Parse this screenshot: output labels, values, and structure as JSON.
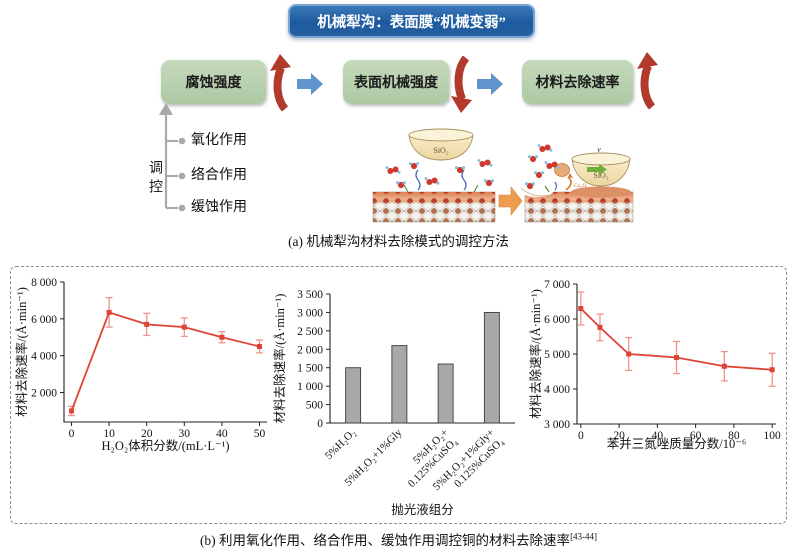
{
  "figure": {
    "panel_a": {
      "title_box": "机械犁沟：表面膜“机械变弱”",
      "flow": [
        {
          "label": "腐蚀强度",
          "trend": "up"
        },
        {
          "label": "表面机械强度",
          "trend": "down"
        },
        {
          "label": "材料去除速率",
          "trend": "up"
        }
      ],
      "regulation": {
        "label": "调控",
        "items": [
          "氧化作用",
          "络合作用",
          "缓蚀作用"
        ]
      },
      "illustration": {
        "abrasive_label_left": "SiO₂",
        "abrasive_label_right": "SiO₂",
        "byproduct_label": "Cu₂O",
        "velocity_label": "v"
      },
      "caption": "(a) 机械犁沟材料去除模式的调控方法"
    },
    "panel_b": {
      "caption": "(b) 利用氧化作用、络合作用、缓蚀作用调控铜的材料去除速率",
      "caption_ref": "[43-44]"
    }
  },
  "chart_data": [
    {
      "type": "line",
      "x": [
        0,
        10,
        20,
        30,
        40,
        50
      ],
      "values": [
        1000,
        6350,
        5700,
        5550,
        5000,
        4500
      ],
      "errors": [
        250,
        800,
        600,
        500,
        300,
        350
      ],
      "xlim": [
        -2,
        52
      ],
      "ylim": [
        400,
        8000
      ],
      "xticks": [
        0,
        10,
        20,
        30,
        40,
        50
      ],
      "yticks": [
        2000,
        4000,
        6000,
        8000
      ],
      "ytick_labels": [
        "2 000",
        "4 000",
        "6 000",
        "8 000"
      ],
      "xlabel": "H₂O₂体积分数/(mL·L⁻¹)",
      "ylabel": "材料去除速率/(Å·min⁻¹)",
      "line_color": "#dd4437",
      "error_color": "#ef938c",
      "grid": false,
      "legend": "none"
    },
    {
      "type": "bar",
      "categories": [
        "5%H₂O₂",
        "5%H₂O₂+1%Gly",
        "5%H₂O₂+\n0.125%CuSO₄",
        "5%H₂O₂+1%Gly+\n0.125%CuSO₄"
      ],
      "values": [
        1500,
        2100,
        1600,
        3000
      ],
      "ylim": [
        0,
        3500
      ],
      "yticks": [
        0,
        500,
        1000,
        1500,
        2000,
        2500,
        3000,
        3500
      ],
      "ytick_labels": [
        "0",
        "500",
        "1 000",
        "1 500",
        "2 000",
        "2 500",
        "3 000",
        "3 500"
      ],
      "xlabel": "抛光液组分",
      "ylabel": "材料去除速率/(Å·min⁻¹)",
      "bar_color": "#a8a8a8",
      "bar_edge": "#3c3c3c",
      "grid": false,
      "legend": "none"
    },
    {
      "type": "line",
      "x": [
        0,
        10,
        25,
        50,
        75,
        100
      ],
      "values": [
        6300,
        5760,
        5000,
        4900,
        4650,
        4550
      ],
      "errors": [
        470,
        380,
        470,
        460,
        420,
        470
      ],
      "xlim": [
        -2,
        102
      ],
      "ylim": [
        3000,
        7000
      ],
      "xticks": [
        0,
        20,
        40,
        60,
        80,
        100
      ],
      "yticks": [
        3000,
        4000,
        5000,
        6000,
        7000
      ],
      "ytick_labels": [
        "3 000",
        "4 000",
        "5 000",
        "6 000",
        "7 000"
      ],
      "xlabel": "苯并三氮唑质量分数/10⁻⁶",
      "ylabel": "材料去除速率/(Å·min⁻¹)",
      "line_color": "#dd4437",
      "error_color": "#ef938c",
      "grid": false,
      "legend": "none"
    }
  ],
  "colors": {
    "title_blue": "#1d5a9e",
    "box_green": "#b7d3ae",
    "arrow_red": "#b23a2d",
    "arrow_blue": "#5f94cc",
    "transfer_orange": "#ee9d4e",
    "chart_line_red": "#dd4437",
    "chart_error_red": "#ef938c",
    "bar_gray": "#a8a8a8",
    "tree_gray": "#a9a9a9"
  }
}
